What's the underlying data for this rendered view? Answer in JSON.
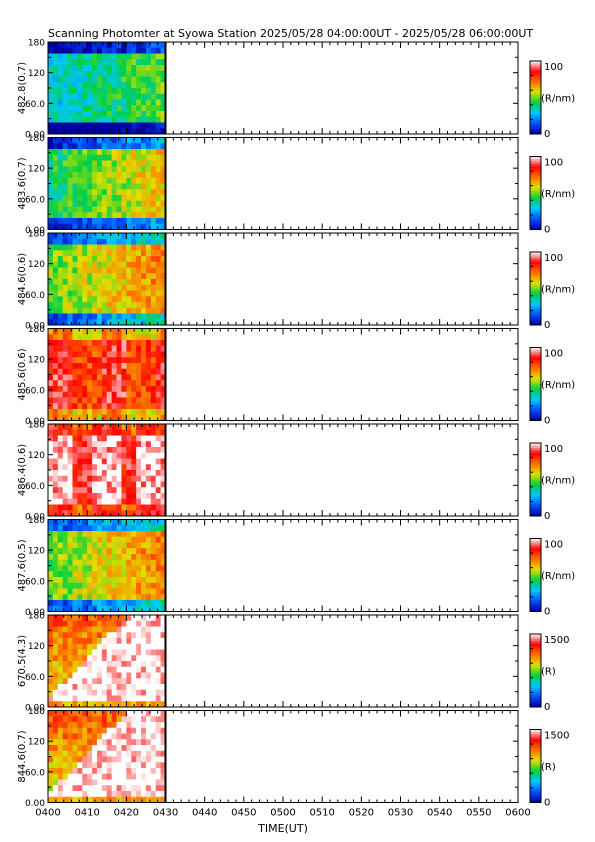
{
  "chart_data": {
    "type": "heatmap",
    "title": "Scanning Photomter at Syowa Station  2025/05/28 04:00:00UT - 2025/05/28 06:00:00UT",
    "xlabel": "TIME(UT)",
    "x_ticks": [
      "0400",
      "0410",
      "0420",
      "0430",
      "0440",
      "0450",
      "0500",
      "0510",
      "0520",
      "0530",
      "0540",
      "0550",
      "0600"
    ],
    "x_range_min": [
      0,
      120
    ],
    "data_end_min": 30,
    "y_ticks": [
      "0.00",
      "60.0",
      "120",
      "180"
    ],
    "y_range": [
      0,
      180
    ],
    "colorscale": [
      "#0000a0",
      "#0050ff",
      "#00c8ff",
      "#00d040",
      "#e0e000",
      "#ff7000",
      "#ff0000",
      "#ffffff"
    ],
    "panels": [
      {
        "label": "482.8(0.7)",
        "unit": "(R/nm)",
        "cmax": "100",
        "cmin": "0",
        "profile": "weak"
      },
      {
        "label": "483.6(0.7)",
        "unit": "(R/nm)",
        "cmax": "100",
        "cmin": "0",
        "profile": "medium"
      },
      {
        "label": "484.6(0.6)",
        "unit": "(R/nm)",
        "cmax": "100",
        "cmin": "0",
        "profile": "medium2"
      },
      {
        "label": "485.6(0.6)",
        "unit": "(R/nm)",
        "cmax": "100",
        "cmin": "0",
        "profile": "strong"
      },
      {
        "label": "486.4(0.6)",
        "unit": "(R/nm)",
        "cmax": "100",
        "cmin": "0",
        "profile": "strongest"
      },
      {
        "label": "487.6(0.5)",
        "unit": "(R/nm)",
        "cmax": "100",
        "cmin": "0",
        "profile": "medium2"
      },
      {
        "label": "670.5(4.3)",
        "unit": "(R)",
        "cmax": "1500",
        "cmin": "0",
        "profile": "saturated"
      },
      {
        "label": "844.6(0.7)",
        "unit": "(R)",
        "cmax": "1500",
        "cmin": "0",
        "profile": "saturated"
      }
    ]
  }
}
